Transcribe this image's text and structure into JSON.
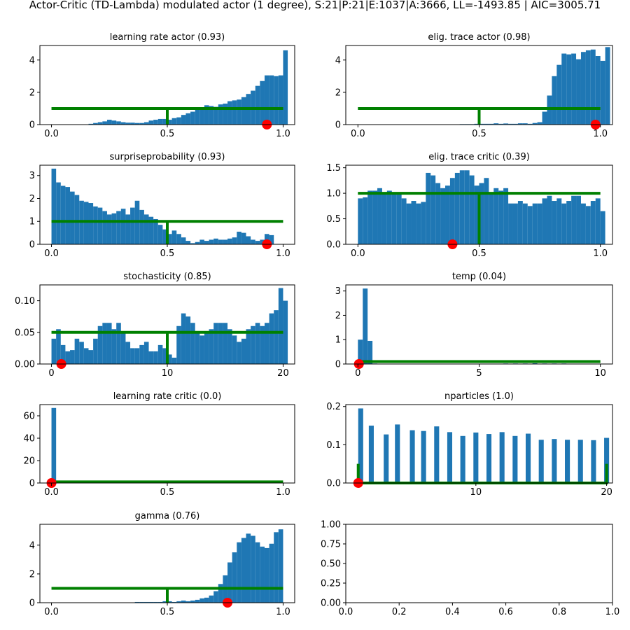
{
  "figure_title": "Actor-Critic (TD-Lambda) modulated actor (1 degree), S:21|P:21|E:1037|A:3666, LL=-1493.85 | AIC=3005.71",
  "colors": {
    "bars": "#1f77b4",
    "prior_line": "#008000",
    "marker": "#ff0000",
    "axes": "#000000",
    "background": "#ffffff"
  },
  "chart_data": [
    {
      "type": "bar",
      "title": "learning rate actor (0.93)",
      "xlim": [
        -0.05,
        1.05
      ],
      "ylim": [
        0,
        4.9
      ],
      "xticks": [
        0,
        0.5,
        1
      ],
      "xtick_labels": [
        "0.0",
        "0.5",
        "1.0"
      ],
      "yticks": [
        0,
        2,
        4
      ],
      "ytick_labels": [
        "0",
        "2",
        "4"
      ],
      "bin_start": 0.0,
      "bin_width": 0.02,
      "values": [
        0,
        0,
        0,
        0,
        0,
        0,
        0,
        0,
        0.05,
        0.1,
        0.15,
        0.2,
        0.3,
        0.25,
        0.2,
        0.15,
        0.12,
        0.12,
        0.1,
        0.1,
        0.15,
        0.25,
        0.3,
        0.35,
        0.35,
        0.3,
        0.4,
        0.45,
        0.6,
        0.7,
        0.8,
        0.95,
        1.0,
        1.2,
        1.15,
        1.1,
        1.25,
        1.3,
        1.45,
        1.5,
        1.55,
        1.7,
        1.9,
        2.1,
        2.4,
        2.7,
        3.05,
        3.05,
        3.0,
        3.05,
        4.6
      ],
      "prior_line": {
        "x": [
          0,
          0.5,
          0.5,
          0.5,
          1
        ],
        "y": [
          1.0,
          1.0,
          0.0,
          1.0,
          1.0
        ]
      },
      "marker": {
        "x": 0.93,
        "y": 0
      }
    },
    {
      "type": "bar",
      "title": "elig. trace actor (0.98)",
      "xlim": [
        -0.05,
        1.05
      ],
      "ylim": [
        0,
        4.9
      ],
      "xticks": [
        0,
        0.5,
        1
      ],
      "xtick_labels": [
        "0.0",
        "0.5",
        "1.0"
      ],
      "yticks": [
        0,
        2,
        4
      ],
      "ytick_labels": [
        "0",
        "2",
        "4"
      ],
      "bin_start": 0.0,
      "bin_width": 0.02,
      "values": [
        0,
        0,
        0,
        0,
        0,
        0,
        0,
        0,
        0,
        0,
        0,
        0,
        0,
        0,
        0,
        0,
        0,
        0,
        0,
        0.02,
        0.02,
        0.03,
        0.03,
        0.03,
        0.05,
        0.05,
        0.05,
        0.05,
        0.08,
        0.05,
        0.07,
        0.05,
        0.05,
        0.08,
        0.08,
        0.05,
        0.1,
        0.15,
        0.8,
        1.8,
        3.0,
        3.7,
        4.4,
        4.35,
        4.4,
        4.05,
        4.5,
        4.6,
        4.65,
        4.25,
        3.95,
        4.8
      ],
      "prior_line": {
        "x": [
          0,
          0.5,
          0.5,
          0.5,
          1
        ],
        "y": [
          1.0,
          1.0,
          0.0,
          1.0,
          1.0
        ]
      },
      "marker": {
        "x": 0.98,
        "y": 0
      }
    },
    {
      "type": "bar",
      "title": "surpriseprobability (0.93)",
      "xlim": [
        -0.05,
        1.05
      ],
      "ylim": [
        0,
        3.45
      ],
      "xticks": [
        0,
        0.5,
        1
      ],
      "xtick_labels": [
        "0.0",
        "0.5",
        "1.0"
      ],
      "yticks": [
        0,
        1,
        2,
        3
      ],
      "ytick_labels": [
        "0",
        "1",
        "2",
        "3"
      ],
      "bin_start": 0.0,
      "bin_width": 0.02,
      "values": [
        3.3,
        2.7,
        2.55,
        2.5,
        2.3,
        2.15,
        1.9,
        1.85,
        1.8,
        1.65,
        1.6,
        1.45,
        1.3,
        1.35,
        1.45,
        1.55,
        1.3,
        1.6,
        1.9,
        1.5,
        1.3,
        1.2,
        1.1,
        0.85,
        0.65,
        0.45,
        0.6,
        0.45,
        0.3,
        0.15,
        0.05,
        0.1,
        0.2,
        0.15,
        0.2,
        0.25,
        0.2,
        0.2,
        0.25,
        0.3,
        0.55,
        0.5,
        0.35,
        0.2,
        0.15,
        0.2,
        0.45,
        0.4
      ],
      "prior_line": {
        "x": [
          0,
          0.5,
          0.5,
          0.5,
          1
        ],
        "y": [
          1.0,
          1.0,
          0.0,
          1.0,
          1.0
        ]
      },
      "marker": {
        "x": 0.93,
        "y": 0
      }
    },
    {
      "type": "bar",
      "title": "elig. trace critic (0.39)",
      "xlim": [
        -0.05,
        1.05
      ],
      "ylim": [
        0,
        1.55
      ],
      "xticks": [
        0,
        0.5,
        1
      ],
      "xtick_labels": [
        "0.0",
        "0.5",
        "1.0"
      ],
      "yticks": [
        0,
        0.5,
        1.0,
        1.5
      ],
      "ytick_labels": [
        "0.0",
        "0.5",
        "1.0",
        "1.5"
      ],
      "bin_start": 0.0,
      "bin_width": 0.02,
      "values": [
        0.9,
        0.92,
        1.05,
        1.05,
        1.1,
        1.0,
        1.05,
        1.0,
        1.0,
        0.9,
        0.8,
        0.85,
        0.8,
        0.83,
        1.4,
        1.35,
        1.2,
        1.1,
        1.15,
        1.3,
        1.4,
        1.45,
        1.45,
        1.35,
        1.15,
        1.2,
        1.3,
        1.0,
        1.1,
        1.05,
        1.1,
        0.8,
        0.8,
        0.85,
        0.8,
        0.75,
        0.8,
        0.8,
        0.9,
        0.95,
        0.85,
        0.9,
        0.8,
        0.85,
        0.95,
        0.95,
        0.8,
        0.75,
        0.85,
        0.9,
        0.65
      ],
      "prior_line": {
        "x": [
          0,
          0.5,
          0.5,
          0.5,
          1
        ],
        "y": [
          1.0,
          1.0,
          0.0,
          1.0,
          1.0
        ]
      },
      "marker": {
        "x": 0.39,
        "y": 0
      }
    },
    {
      "type": "bar",
      "title": "stochasticity (0.85)",
      "xlim": [
        -1,
        21
      ],
      "ylim": [
        0,
        0.125
      ],
      "xticks": [
        0,
        10,
        20
      ],
      "xtick_labels": [
        "0",
        "10",
        "20"
      ],
      "yticks": [
        0,
        0.05,
        0.1
      ],
      "ytick_labels": [
        "0.00",
        "0.05",
        "0.10"
      ],
      "bin_start": 0,
      "bin_width": 0.4,
      "values": [
        0.04,
        0.055,
        0.03,
        0.02,
        0.022,
        0.04,
        0.035,
        0.025,
        0.022,
        0.04,
        0.06,
        0.065,
        0.065,
        0.055,
        0.065,
        0.05,
        0.035,
        0.025,
        0.025,
        0.03,
        0.035,
        0.02,
        0.02,
        0.03,
        0.025,
        0.015,
        0.01,
        0.06,
        0.08,
        0.075,
        0.065,
        0.05,
        0.045,
        0.05,
        0.055,
        0.065,
        0.065,
        0.065,
        0.055,
        0.045,
        0.035,
        0.04,
        0.055,
        0.06,
        0.065,
        0.06,
        0.065,
        0.08,
        0.085,
        0.12,
        0.1
      ],
      "prior_line": {
        "x": [
          0,
          10,
          10,
          10,
          20
        ],
        "y": [
          0.05,
          0.05,
          0.0,
          0.05,
          0.05
        ]
      },
      "marker": {
        "x": 0.85,
        "y": 0
      }
    },
    {
      "type": "bar",
      "title": "temp (0.04)",
      "xlim": [
        -0.5,
        10.5
      ],
      "ylim": [
        0,
        3.25
      ],
      "xticks": [
        0,
        5,
        10
      ],
      "xtick_labels": [
        "0",
        "5",
        "10"
      ],
      "yticks": [
        0,
        1,
        2,
        3
      ],
      "ytick_labels": [
        "0",
        "1",
        "2",
        "3"
      ],
      "bin_start": 0,
      "bin_width": 0.2,
      "values": [
        1.0,
        3.1,
        0.95,
        0.02,
        0,
        0,
        0,
        0,
        0,
        0,
        0,
        0,
        0,
        0,
        0,
        0,
        0,
        0,
        0,
        0,
        0,
        0,
        0,
        0,
        0,
        0,
        0,
        0,
        0,
        0,
        0.02,
        0,
        0.02,
        0,
        0.02,
        0,
        0.03,
        0,
        0.02,
        0,
        0.02,
        0,
        0.02,
        0,
        0,
        0,
        0,
        0,
        0,
        0,
        0
      ],
      "prior_line": {
        "x": [
          0,
          10
        ],
        "y": [
          0.1,
          0.1
        ]
      },
      "marker": {
        "x": 0.04,
        "y": 0
      }
    },
    {
      "type": "bar",
      "title": "learning rate critic (0.0)",
      "xlim": [
        -0.05,
        1.05
      ],
      "ylim": [
        0,
        70
      ],
      "xticks": [
        0,
        0.5,
        1
      ],
      "xtick_labels": [
        "0.0",
        "0.5",
        "1.0"
      ],
      "yticks": [
        0,
        20,
        40,
        60
      ],
      "ytick_labels": [
        "0",
        "20",
        "40",
        "60"
      ],
      "bin_start": 0.0,
      "bin_width": 0.02,
      "values": [
        67,
        0.3,
        0.1,
        0.05,
        0,
        0,
        0,
        0,
        0,
        0,
        0,
        0,
        0,
        0,
        0,
        0,
        0,
        0,
        0,
        0,
        0,
        0,
        0,
        0,
        0,
        0,
        0,
        0,
        0,
        0,
        0,
        0,
        0,
        0,
        0,
        0,
        0,
        0,
        0,
        0,
        0,
        0,
        0,
        0,
        0,
        0,
        0,
        0,
        0,
        0
      ],
      "prior_line": {
        "x": [
          0,
          1
        ],
        "y": [
          1.0,
          1.0
        ]
      },
      "marker": {
        "x": 0.0,
        "y": 0
      }
    },
    {
      "type": "bar",
      "title": "nparticles (1.0)",
      "xlim": [
        0.05,
        20.45
      ],
      "ylim": [
        0,
        0.205
      ],
      "xticks": [
        10,
        20
      ],
      "xtick_labels": [
        "10",
        "20"
      ],
      "yticks": [
        0,
        0.1,
        0.2
      ],
      "ytick_labels": [
        "0.0",
        "0.1",
        "0.2"
      ],
      "bar_width": 0.38,
      "bar_x": [
        1.19,
        2.0,
        3.14,
        4.0,
        5.14,
        6.0,
        7.0,
        8.0,
        9.0,
        10.0,
        11.0,
        12.0,
        13.0,
        14.0,
        15.0,
        16.0,
        17.0,
        18.0,
        19.0,
        20.0
      ],
      "values": [
        0.195,
        0.15,
        0.127,
        0.153,
        0.138,
        0.136,
        0.148,
        0.133,
        0.123,
        0.132,
        0.128,
        0.133,
        0.123,
        0.129,
        0.113,
        0.115,
        0.113,
        0.113,
        0.112,
        0.118
      ],
      "prior_line": {
        "x": [
          1,
          1,
          20,
          20
        ],
        "y": [
          0.05,
          0,
          0,
          0.05
        ]
      },
      "marker": {
        "x": 1.0,
        "y": 0
      }
    },
    {
      "type": "bar",
      "title": "gamma (0.76)",
      "xlim": [
        -0.05,
        1.05
      ],
      "ylim": [
        0,
        5.45
      ],
      "xticks": [
        0,
        0.5,
        1
      ],
      "xtick_labels": [
        "0.0",
        "0.5",
        "1.0"
      ],
      "yticks": [
        0,
        2,
        4
      ],
      "ytick_labels": [
        "0",
        "2",
        "4"
      ],
      "bin_start": 0.0,
      "bin_width": 0.02,
      "values": [
        0,
        0,
        0,
        0,
        0,
        0,
        0,
        0,
        0,
        0,
        0,
        0,
        0,
        0,
        0,
        0,
        0,
        0,
        0.05,
        0.05,
        0.05,
        0.05,
        0.05,
        0.05,
        0.1,
        0.1,
        0.05,
        0.1,
        0.15,
        0.1,
        0.15,
        0.2,
        0.3,
        0.35,
        0.5,
        0.8,
        1.3,
        1.9,
        2.8,
        3.5,
        4.2,
        4.5,
        4.8,
        4.65,
        4.2,
        3.9,
        3.8,
        4.1,
        4.9,
        5.1
      ],
      "prior_line": {
        "x": [
          0,
          0.5,
          0.5,
          0.5,
          1
        ],
        "y": [
          1.0,
          1.0,
          0.0,
          1.0,
          1.0
        ]
      },
      "marker": {
        "x": 0.76,
        "y": 0
      }
    },
    {
      "type": "bar",
      "title": "",
      "xlim": [
        0,
        1
      ],
      "ylim": [
        0,
        1
      ],
      "xticks": [
        0,
        0.2,
        0.4,
        0.6,
        0.8,
        1.0
      ],
      "xtick_labels": [
        "0.0",
        "0.2",
        "0.4",
        "0.6",
        "0.8",
        "1.0"
      ],
      "yticks": [
        0,
        0.25,
        0.5,
        0.75,
        1.0
      ],
      "ytick_labels": [
        "0.00",
        "0.25",
        "0.50",
        "0.75",
        "1.00"
      ],
      "values": []
    }
  ]
}
